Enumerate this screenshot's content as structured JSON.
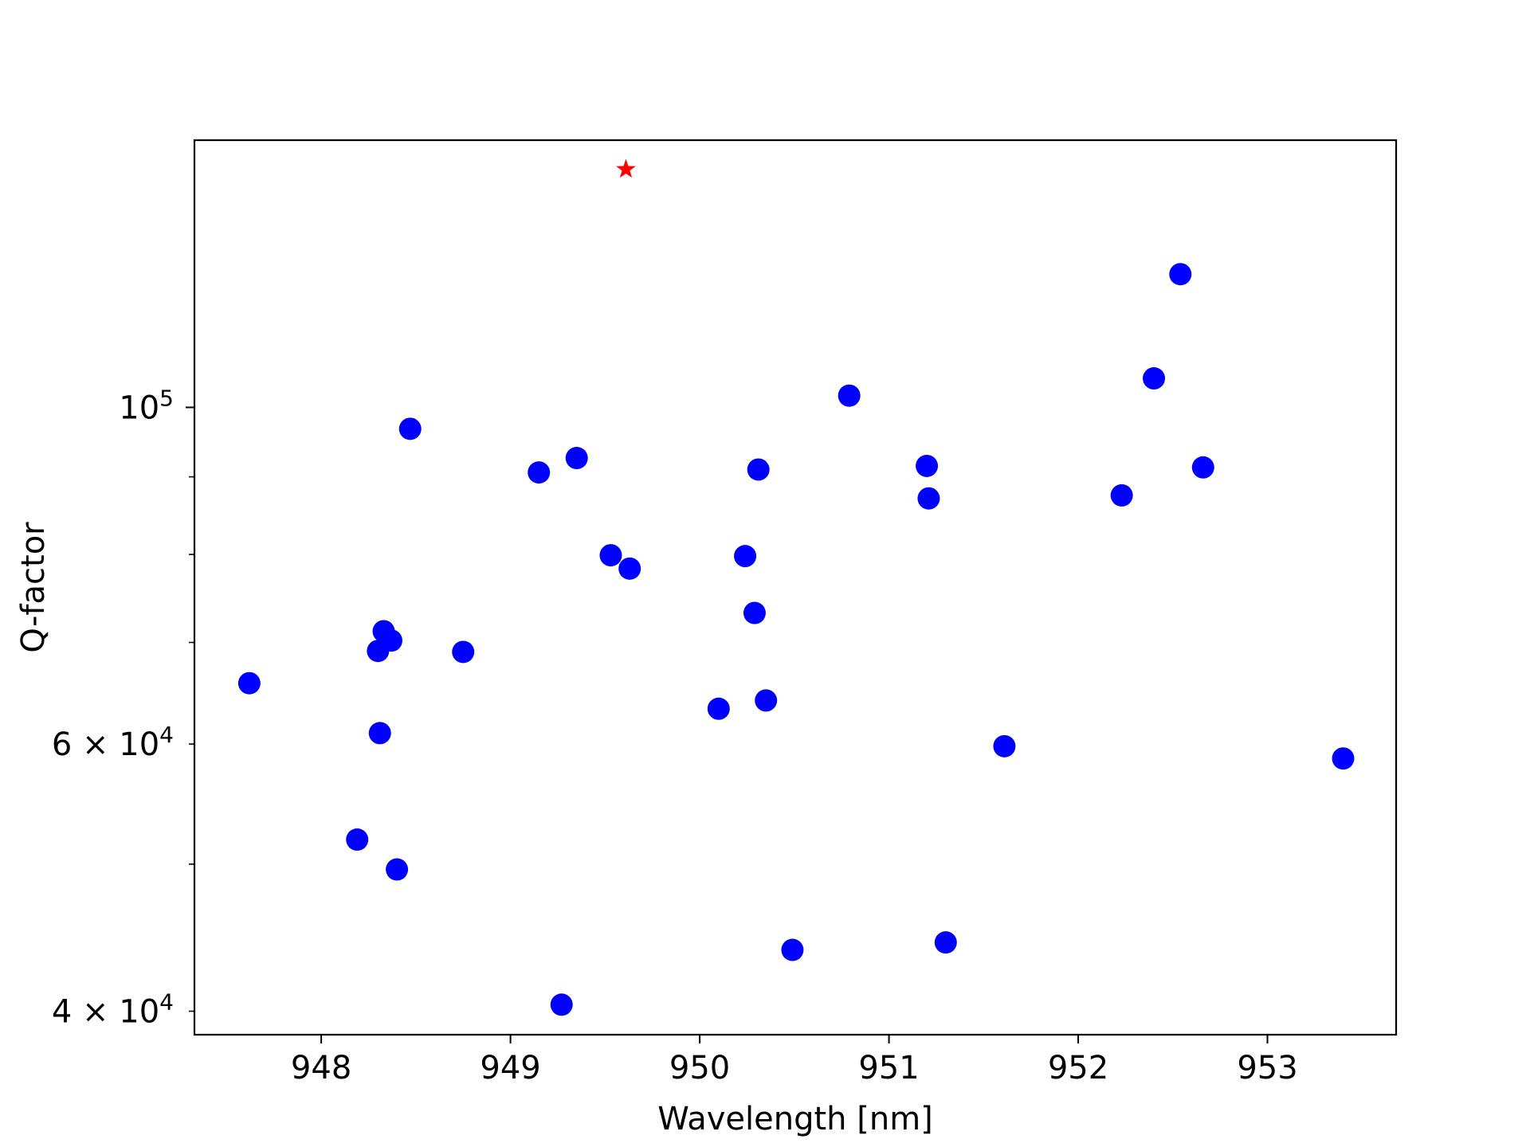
{
  "chart_data": {
    "type": "scatter",
    "title": "",
    "xlabel": "Wavelength [nm]",
    "ylabel": "Q-factor",
    "xlim": [
      947.33,
      953.68
    ],
    "ylim": [
      38600,
      150000
    ],
    "yscale": "log",
    "grid": false,
    "x_ticks": [
      {
        "value": 948,
        "label": "948"
      },
      {
        "value": 949,
        "label": "949"
      },
      {
        "value": 950,
        "label": "950"
      },
      {
        "value": 951,
        "label": "951"
      },
      {
        "value": 952,
        "label": "952"
      },
      {
        "value": 953,
        "label": "953"
      }
    ],
    "y_major_ticks": [
      {
        "value": 100000,
        "base": "10",
        "exp": "5"
      }
    ],
    "y_minor_ticks": [
      {
        "value": 40000,
        "base": "4 × 10",
        "exp": "4"
      },
      {
        "value": 60000,
        "base": "6 × 10",
        "exp": "4"
      },
      {
        "value": 50000,
        "base": "",
        "exp": ""
      },
      {
        "value": 70000,
        "base": "",
        "exp": ""
      },
      {
        "value": 80000,
        "base": "",
        "exp": ""
      },
      {
        "value": 90000,
        "base": "",
        "exp": ""
      }
    ],
    "series": [
      {
        "marker": "circle",
        "color": "#0000ff",
        "points": [
          {
            "x": 947.62,
            "y": 65800
          },
          {
            "x": 948.19,
            "y": 51900
          },
          {
            "x": 948.3,
            "y": 69100
          },
          {
            "x": 948.31,
            "y": 61000
          },
          {
            "x": 948.33,
            "y": 71200
          },
          {
            "x": 948.37,
            "y": 70200
          },
          {
            "x": 948.4,
            "y": 49600
          },
          {
            "x": 948.47,
            "y": 96800
          },
          {
            "x": 948.75,
            "y": 69000
          },
          {
            "x": 949.15,
            "y": 90600
          },
          {
            "x": 949.27,
            "y": 40400
          },
          {
            "x": 949.35,
            "y": 92600
          },
          {
            "x": 949.53,
            "y": 79900
          },
          {
            "x": 949.63,
            "y": 78300
          },
          {
            "x": 950.1,
            "y": 63300
          },
          {
            "x": 950.24,
            "y": 79800
          },
          {
            "x": 950.29,
            "y": 73200
          },
          {
            "x": 950.31,
            "y": 91000
          },
          {
            "x": 950.35,
            "y": 64100
          },
          {
            "x": 950.49,
            "y": 43900
          },
          {
            "x": 950.79,
            "y": 101800
          },
          {
            "x": 951.2,
            "y": 91500
          },
          {
            "x": 951.21,
            "y": 87100
          },
          {
            "x": 951.3,
            "y": 44400
          },
          {
            "x": 951.61,
            "y": 59800
          },
          {
            "x": 952.23,
            "y": 87500
          },
          {
            "x": 952.4,
            "y": 104500
          },
          {
            "x": 952.54,
            "y": 122400
          },
          {
            "x": 952.66,
            "y": 91300
          },
          {
            "x": 953.4,
            "y": 58700
          }
        ]
      },
      {
        "marker": "star",
        "color": "#ff0000",
        "points": [
          {
            "x": 949.61,
            "y": 143500
          }
        ]
      }
    ]
  }
}
